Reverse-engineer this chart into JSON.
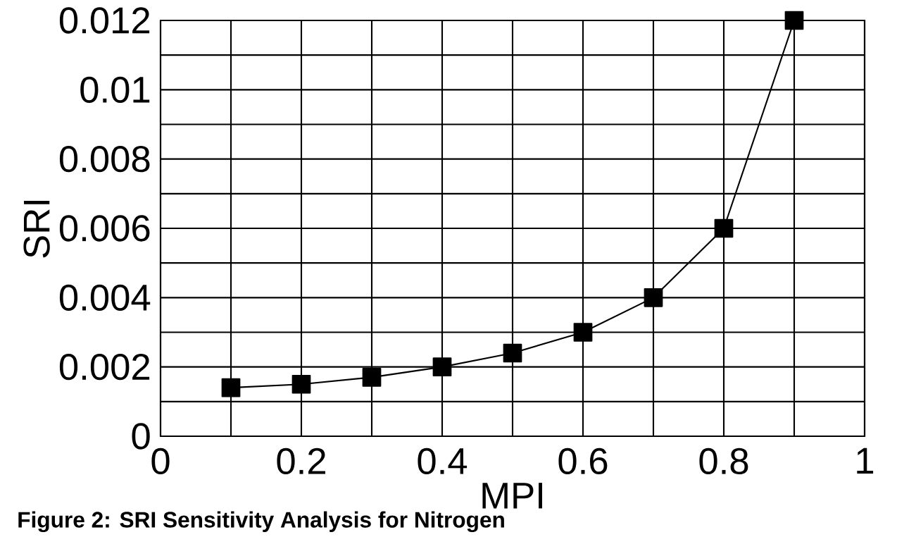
{
  "chart_data": {
    "type": "line",
    "xlabel": "MPI",
    "ylabel": "SRI",
    "annotations": [
      "Figure 2: SRI Sensitivity Analysis for Nitrogen"
    ],
    "x": [
      0.1,
      0.2,
      0.3,
      0.4,
      0.5,
      0.6,
      0.7,
      0.8,
      0.9
    ],
    "series": [
      {
        "color": "#000000",
        "values": [
          0.0014,
          0.0015,
          0.0017,
          0.002,
          0.0024,
          0.003,
          0.004,
          0.006,
          0.012
        ]
      }
    ],
    "xlim": [
      0,
      1
    ],
    "ylim": [
      0,
      0.012
    ],
    "xticks": [
      0,
      {
        "value": 0.1,
        "label": null
      },
      0.2,
      {
        "value": 0.3,
        "label": null
      },
      0.4,
      {
        "value": 0.5,
        "label": null
      },
      0.6,
      {
        "value": 0.7,
        "label": null
      },
      0.8,
      {
        "value": 0.9,
        "label": null
      },
      1
    ],
    "yticks": [
      0,
      {
        "value": 0.001,
        "label": null
      },
      0.002,
      {
        "value": 0.003,
        "label": null
      },
      0.004,
      {
        "value": 0.005,
        "label": null
      },
      0.006,
      {
        "value": 0.007,
        "label": null
      },
      0.008,
      {
        "value": 0.009,
        "label": null
      },
      0.01,
      {
        "value": 0.011,
        "label": null
      },
      0.012
    ],
    "grid": true,
    "marker": "square",
    "line_style": "solid"
  }
}
